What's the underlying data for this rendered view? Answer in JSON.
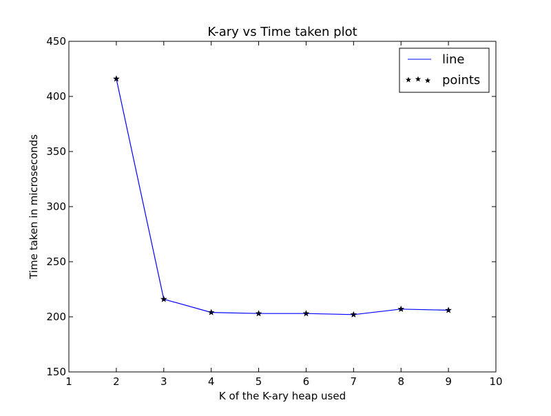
{
  "chart_data": {
    "type": "line",
    "title": "K-ary vs Time taken plot",
    "xlabel": "K of the K-ary heap used",
    "ylabel": "Time taken in microseconds",
    "xlim": [
      1,
      10
    ],
    "ylim": [
      150,
      450
    ],
    "x_ticks": [
      "1",
      "2",
      "3",
      "4",
      "5",
      "6",
      "7",
      "8",
      "9",
      "10"
    ],
    "y_ticks": [
      "150",
      "200",
      "250",
      "300",
      "350",
      "400",
      "450"
    ],
    "x": [
      2,
      3,
      4,
      5,
      6,
      7,
      8,
      9
    ],
    "series": [
      {
        "name": "line",
        "style": "line",
        "color": "#0000ff",
        "values": [
          416,
          216,
          204,
          203,
          203,
          202,
          207,
          206
        ]
      },
      {
        "name": "points",
        "style": "marker-star",
        "color": "#000000",
        "values": [
          416,
          216,
          204,
          203,
          203,
          202,
          207,
          206
        ]
      }
    ],
    "legend_position": "top-right",
    "grid": false
  }
}
